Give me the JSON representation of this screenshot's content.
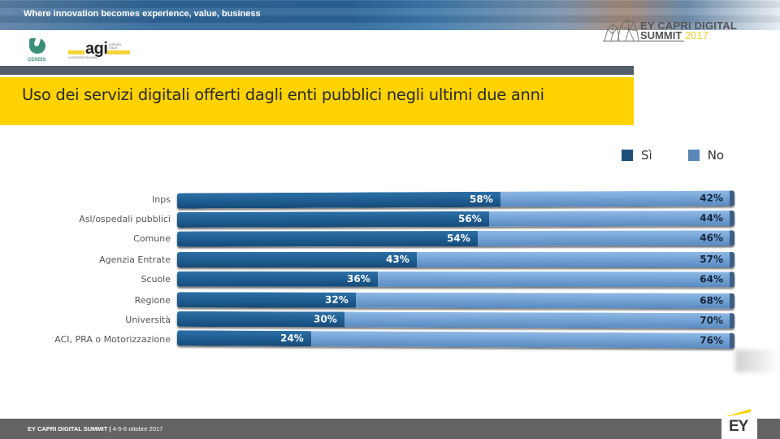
{
  "header": {
    "tagline": "Where innovation becomes experience, value, business",
    "logos": {
      "censis": "CENSIS",
      "agi": "agi",
      "agi_small_top": "AGENZIA ITALIA",
      "agi_small_bottom": "LA NOTIZIA ITALIANA"
    },
    "summit_logo": {
      "line1": "EY CAPRI DIGITAL",
      "line2": "SUMMIT",
      "year": "2017"
    }
  },
  "title": "Uso dei servizi digitali offerti dagli enti pubblici negli ultimi due anni",
  "legend": [
    {
      "label": "Sì",
      "color": "#1d4e7a"
    },
    {
      "label": "No",
      "color": "#5a87b8"
    }
  ],
  "colors": {
    "yellow": "#ffd200",
    "si": "#1d5a8e",
    "no": "#6f9fd2",
    "strip": "#535d69",
    "footer": "#646464"
  },
  "chart_data": {
    "type": "bar",
    "orientation": "horizontal",
    "stacked": true,
    "title": "Uso dei servizi digitali offerti dagli enti pubblici negli ultimi due anni",
    "categories": [
      "Inps",
      "Asl/ospedali pubblici",
      "Comune",
      "Agenzia Entrate",
      "Scuole",
      "Regione",
      "Università",
      "ACI, PRA o Motorizzazione"
    ],
    "series": [
      {
        "name": "Sì",
        "values": [
          58,
          56,
          54,
          43,
          36,
          32,
          30,
          24
        ]
      },
      {
        "name": "No",
        "values": [
          42,
          44,
          46,
          57,
          64,
          68,
          70,
          76
        ]
      }
    ],
    "value_labels": {
      "si": [
        "58%",
        "56%",
        "54%",
        "43%",
        "36%",
        "32%",
        "30%",
        "24%"
      ],
      "no": [
        "42%",
        "44%",
        "46%",
        "57%",
        "64%",
        "68%",
        "70%",
        "76%"
      ]
    },
    "xlim": [
      0,
      100
    ],
    "unit": "%",
    "legend_position": "top-right",
    "grid": false
  },
  "footer": {
    "event": "EY CAPRI DIGITAL SUMMIT",
    "separator": " | ",
    "dates": "4-5-6 ottobre 2017",
    "brand": "EY"
  }
}
